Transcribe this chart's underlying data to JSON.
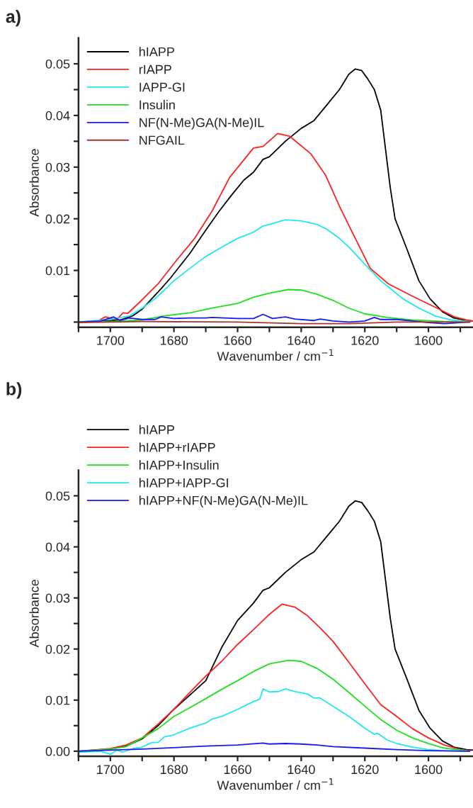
{
  "chart_data": [
    {
      "type": "line",
      "title": "a)",
      "xlabel": "Wavenumber / cm$^{−1}$",
      "ylabel": "Absorbance",
      "legend": "top left",
      "grid": false,
      "xlim": [
        1710,
        1586
      ],
      "ylim": [
        -0.001,
        0.055
      ],
      "xticks": [
        {
          "value": 1710,
          "label": null
        },
        1700,
        {
          "value": 1690,
          "label": null
        },
        1680,
        {
          "value": 1670,
          "label": null
        },
        1660,
        {
          "value": 1650,
          "label": null
        },
        1640,
        {
          "value": 1630,
          "label": null
        },
        1620,
        {
          "value": 1610,
          "label": null
        },
        1600,
        {
          "value": 1590,
          "label": null
        }
      ],
      "yticks": [
        {
          "value": 0,
          "label": null
        },
        {
          "value": 0.005,
          "label": null
        },
        0.01,
        {
          "value": 0.015,
          "label": null
        },
        0.02,
        {
          "value": 0.025,
          "label": null
        },
        0.03,
        {
          "value": 0.035,
          "label": null
        },
        0.04,
        {
          "value": 0.045,
          "label": null
        },
        0.05
      ],
      "series": [
        {
          "name": "hIAPP",
          "color": "#000000",
          "x": [
            1710,
            1700,
            1697,
            1693,
            1690,
            1687,
            1684,
            1681,
            1675,
            1670,
            1666,
            1662,
            1658,
            1655,
            1652,
            1650,
            1645,
            1640,
            1636,
            1632,
            1628,
            1625,
            1623,
            1621,
            1619,
            1617,
            1615,
            1614,
            1612,
            1610.5,
            1607,
            1603,
            1599.5,
            1595.6,
            1592,
            1588,
            1586
          ],
          "values": [
            0,
            0.0003,
            0.0004,
            0.0012,
            0.0025,
            0.0045,
            0.0065,
            0.0086,
            0.0133,
            0.0178,
            0.0213,
            0.0245,
            0.0275,
            0.029,
            0.0315,
            0.032,
            0.035,
            0.0375,
            0.039,
            0.042,
            0.045,
            0.048,
            0.049,
            0.0487,
            0.047,
            0.045,
            0.041,
            0.036,
            0.026,
            0.02,
            0.0145,
            0.008,
            0.0045,
            0.002,
            0.0008,
            0.0003,
            0.0002
          ]
        },
        {
          "name": "rIAPP",
          "color": "#ff2020",
          "x": [
            1710,
            1704,
            1701.6,
            1698,
            1696,
            1694.5,
            1690.7,
            1685,
            1679,
            1673.5,
            1668,
            1662.5,
            1655,
            1652,
            1647.4,
            1643.7,
            1637,
            1632.4,
            1627.8,
            1623,
            1618.3,
            1612.6,
            1605,
            1597.3,
            1591.8,
            1588,
            1586
          ],
          "values": [
            0,
            0.0002,
            0.001,
            0.0005,
            0.0018,
            0.0017,
            0.0039,
            0.0074,
            0.0121,
            0.0162,
            0.0215,
            0.028,
            0.0337,
            0.034,
            0.0365,
            0.036,
            0.0326,
            0.0285,
            0.0222,
            0.0162,
            0.0104,
            0.0074,
            0.005,
            0.0027,
            0.001,
            0.0004,
            0.0002
          ]
        },
        {
          "name": "IAPP-GI",
          "color": "#20e8f0",
          "x": [
            1710,
            1700,
            1694,
            1690,
            1686,
            1683,
            1680,
            1675,
            1670,
            1665,
            1660,
            1655,
            1652,
            1650,
            1645,
            1640,
            1635,
            1632,
            1628,
            1625,
            1620,
            1615,
            1612,
            1608,
            1603,
            1598,
            1593,
            1587
          ],
          "values": [
            0,
            0.0005,
            0.0012,
            0.0027,
            0.0045,
            0.0062,
            0.008,
            0.0104,
            0.0127,
            0.0145,
            0.0162,
            0.0174,
            0.0186,
            0.0189,
            0.0198,
            0.0196,
            0.0189,
            0.018,
            0.0162,
            0.0145,
            0.0112,
            0.008,
            0.0065,
            0.0045,
            0.0027,
            0.0012,
            0.0004,
            0.0001
          ]
        },
        {
          "name": "Insulin",
          "color": "#20e020",
          "x": [
            1710,
            1700,
            1690,
            1683,
            1675,
            1668,
            1660,
            1655,
            1650,
            1644,
            1640,
            1635,
            1630,
            1625,
            1620,
            1613,
            1605,
            1595,
            1587
          ],
          "values": [
            0,
            0.0001,
            0.0004,
            0.0012,
            0.0018,
            0.0027,
            0.0036,
            0.0048,
            0.0056,
            0.0063,
            0.0062,
            0.0054,
            0.0042,
            0.0027,
            0.0016,
            0.0009,
            0.0004,
            0.0001,
            0
          ]
        },
        {
          "name": "NF(N-Me)GA(N-Me)IL",
          "color": "#1a1aee",
          "x": [
            1710,
            1703,
            1699,
            1697,
            1694,
            1690,
            1686,
            1684,
            1680,
            1675,
            1670,
            1668,
            1660,
            1655,
            1652,
            1649,
            1645,
            1642,
            1636,
            1634,
            1630,
            1625,
            1620,
            1617,
            1615,
            1610,
            1605,
            1600,
            1595,
            1590,
            1587
          ],
          "values": [
            0,
            0.0002,
            0.001,
            0.0003,
            0.0008,
            0.0005,
            0.0005,
            0.001,
            0.0007,
            0.0008,
            0.0008,
            0.0009,
            0.0007,
            0.0007,
            0.0015,
            0.0007,
            0.001,
            0.0006,
            0.0003,
            0.0006,
            0.0002,
            0,
            0.0002,
            0.0009,
            0.0005,
            0.0005,
            0.0002,
            -0.0001,
            -0.0003,
            -0.0001,
            0
          ]
        },
        {
          "name": "NFGAIL",
          "color": "#a83232",
          "x": [
            1710,
            1690,
            1660,
            1640,
            1625,
            1610,
            1587
          ],
          "values": [
            -0.0001,
            0.0001,
            0,
            -0.0003,
            -0.0003,
            0,
            0
          ]
        }
      ]
    },
    {
      "type": "line",
      "title": "b)",
      "xlabel": "Wavenumber / cm$^{−1}$",
      "ylabel": "Absorbance",
      "legend": "top left",
      "grid": false,
      "xlim": [
        1710,
        1586
      ],
      "ylim": [
        -0.001,
        0.055
      ],
      "xticks": [
        {
          "value": 1710,
          "label": null
        },
        1700,
        {
          "value": 1690,
          "label": null
        },
        1680,
        {
          "value": 1670,
          "label": null
        },
        1660,
        {
          "value": 1650,
          "label": null
        },
        1640,
        {
          "value": 1630,
          "label": null
        },
        1620,
        {
          "value": 1610,
          "label": null
        },
        1600,
        {
          "value": 1590,
          "label": null
        }
      ],
      "yticks": [
        {
          "value": 0,
          "label": "0.00"
        },
        {
          "value": 0.005,
          "label": null
        },
        0.01,
        {
          "value": 0.015,
          "label": null
        },
        0.02,
        {
          "value": 0.025,
          "label": null
        },
        0.03,
        {
          "value": 0.035,
          "label": null
        },
        0.04,
        {
          "value": 0.045,
          "label": null
        },
        0.05
      ],
      "series": [
        {
          "name": "hIAPP",
          "color": "#000000",
          "x": [
            1710,
            1700,
            1695,
            1690,
            1685,
            1680,
            1675,
            1670,
            1665,
            1660,
            1655,
            1652,
            1650,
            1645,
            1640,
            1636,
            1632,
            1628,
            1625,
            1623,
            1621,
            1619,
            1617,
            1615,
            1614,
            1612,
            1610.5,
            1607,
            1603,
            1599.5,
            1595.6,
            1592,
            1588,
            1586
          ],
          "values": [
            0,
            0.0004,
            0.001,
            0.0024,
            0.005,
            0.0082,
            0.011,
            0.0138,
            0.0203,
            0.0256,
            0.029,
            0.0315,
            0.032,
            0.035,
            0.0375,
            0.039,
            0.042,
            0.045,
            0.048,
            0.049,
            0.0487,
            0.047,
            0.045,
            0.041,
            0.036,
            0.026,
            0.02,
            0.0145,
            0.008,
            0.0045,
            0.002,
            0.0008,
            0.0003,
            0.0002
          ]
        },
        {
          "name": "hIAPP+rIAPP",
          "color": "#ff2020",
          "x": [
            1710,
            1700,
            1695,
            1690,
            1685,
            1680,
            1675,
            1670,
            1665,
            1660,
            1655,
            1650,
            1646,
            1642,
            1638,
            1634,
            1630,
            1625,
            1620,
            1615,
            1610,
            1605,
            1600,
            1595,
            1590,
            1587
          ],
          "values": [
            0,
            0.0005,
            0.0012,
            0.0026,
            0.0053,
            0.0082,
            0.0115,
            0.0147,
            0.0176,
            0.0209,
            0.0238,
            0.0268,
            0.0288,
            0.0282,
            0.0265,
            0.0241,
            0.0215,
            0.0174,
            0.0132,
            0.0091,
            0.0068,
            0.0044,
            0.0026,
            0.0012,
            0.0003,
            0.0001
          ]
        },
        {
          "name": "hIAPP+Insulin",
          "color": "#20e020",
          "x": [
            1710,
            1700,
            1695,
            1690,
            1685,
            1680,
            1675,
            1670,
            1665,
            1660,
            1655,
            1650,
            1644,
            1640,
            1635,
            1630,
            1625,
            1620,
            1615,
            1610,
            1605,
            1600,
            1595,
            1588
          ],
          "values": [
            0,
            0.0004,
            0.0009,
            0.0026,
            0.0044,
            0.0068,
            0.0085,
            0.0103,
            0.0121,
            0.0138,
            0.0156,
            0.0171,
            0.0178,
            0.0176,
            0.0162,
            0.0141,
            0.0115,
            0.0088,
            0.0062,
            0.0041,
            0.0026,
            0.0015,
            0.0006,
            0.0001
          ]
        },
        {
          "name": "hIAPP+IAPP-GI",
          "color": "#20e8f0",
          "x": [
            1710,
            1703,
            1700,
            1698,
            1696,
            1693,
            1690,
            1687,
            1685,
            1683,
            1680,
            1677,
            1675,
            1670,
            1668,
            1665,
            1660,
            1655,
            1653,
            1652,
            1650,
            1647,
            1645,
            1642,
            1638,
            1636,
            1634,
            1630,
            1625,
            1620,
            1617,
            1616,
            1613,
            1610,
            1605,
            1600,
            1595,
            1587
          ],
          "values": [
            -0.0002,
            0,
            -0.0006,
            0.0002,
            -0.0002,
            0.0005,
            0.0008,
            0.0017,
            0.0017,
            0.0028,
            0.0032,
            0.004,
            0.0045,
            0.0055,
            0.0063,
            0.0068,
            0.0082,
            0.0097,
            0.0102,
            0.0122,
            0.0116,
            0.0117,
            0.0122,
            0.0117,
            0.0112,
            0.0104,
            0.0104,
            0.0088,
            0.0068,
            0.0045,
            0.0033,
            0.0035,
            0.0022,
            0.0015,
            0.0008,
            0.0003,
            0.0001,
            0
          ]
        },
        {
          "name": "hIAPP+NF(N-Me)GA(N-Me)IL",
          "color": "#1a1aee",
          "x": [
            1710,
            1700,
            1690,
            1680,
            1670,
            1660,
            1652,
            1650,
            1645,
            1640,
            1635,
            1630,
            1620,
            1610,
            1600,
            1587
          ],
          "values": [
            0,
            0.0002,
            0.0004,
            0.0007,
            0.001,
            0.0012,
            0.0016,
            0.0014,
            0.0015,
            0.0014,
            0.0012,
            0.0009,
            0.0006,
            0.0003,
            0.0001,
            0
          ]
        }
      ]
    }
  ]
}
